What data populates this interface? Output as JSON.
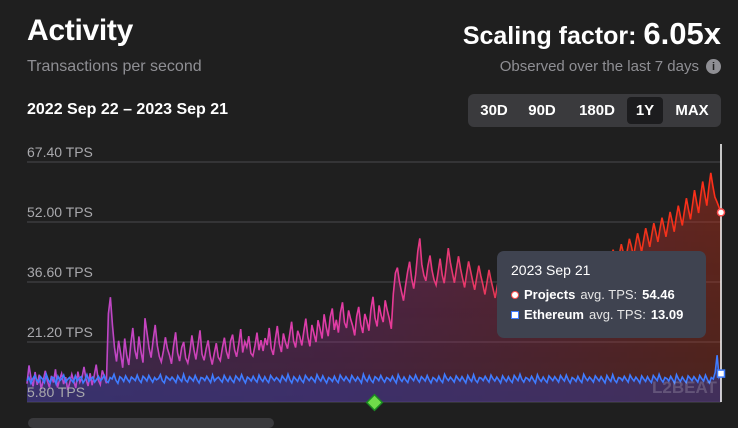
{
  "header": {
    "title": "Activity",
    "subtitle": "Transactions per second",
    "scaling_label": "Scaling factor:",
    "scaling_value": "6.05x",
    "observed": "Observed over the last 7 days",
    "date_range": "2022 Sep 22 – 2023 Sep 21"
  },
  "ranges": [
    {
      "label": "30D",
      "active": false
    },
    {
      "label": "90D",
      "active": false
    },
    {
      "label": "180D",
      "active": false
    },
    {
      "label": "1Y",
      "active": true
    },
    {
      "label": "MAX",
      "active": false
    }
  ],
  "tooltip": {
    "date": "2023 Sep 21",
    "projects_label": "Projects",
    "ethereum_label": "Ethereum",
    "metric": "avg. TPS:",
    "projects_value": "54.46",
    "ethereum_value": "13.09"
  },
  "watermark": "L2BEAT",
  "colors": {
    "projects_start": "#e63aa0",
    "projects_end": "#ff3a1e",
    "ethereum": "#3f7cff",
    "background": "#1f1f1f"
  },
  "chart_data": {
    "type": "line",
    "x_start": "2022-09-22",
    "x_end": "2023-09-21",
    "y_ticks": [
      "67.40 TPS",
      "52.00 TPS",
      "36.60 TPS",
      "21.20 TPS",
      "5.80 TPS"
    ],
    "y_tick_values": [
      67.4,
      52.0,
      36.6,
      21.2,
      5.8
    ],
    "ylim": [
      5.8,
      67.4
    ],
    "series": [
      {
        "name": "Projects",
        "values": [
          10.5,
          15.2,
          11.8,
          9.8,
          13.5,
          10.2,
          12.8,
          9.1,
          11.4,
          13.8,
          11.2,
          9.6,
          12.5,
          10.8,
          14.2,
          9.5,
          11.6,
          13.1,
          10.4,
          12.2,
          8.9,
          10.7,
          12.9,
          11.1,
          9.4,
          13.6,
          10.9,
          12.1,
          14.8,
          11.7,
          9.9,
          13.2,
          10.1,
          12.6,
          15.4,
          11.5,
          10.3,
          13.9,
          12.4,
          10.6,
          28.5,
          32.7,
          25.4,
          19.8,
          16.2,
          21.5,
          18.3,
          14.6,
          22.1,
          17.9,
          15.3,
          20.7,
          24.8,
          19.1,
          16.8,
          22.6,
          18.7,
          15.9,
          27.3,
          23.4,
          19.6,
          17.2,
          21.8,
          25.6,
          20.3,
          17.5,
          16.1,
          18.9,
          22.4,
          19.5,
          17.8,
          15.6,
          20.1,
          23.7,
          18.4,
          16.3,
          19.8,
          21.2,
          17.1,
          15.8,
          18.6,
          22.9,
          19.3,
          16.7,
          20.5,
          24.2,
          18.1,
          16.5,
          19.4,
          21.6,
          17.7,
          15.4,
          18.2,
          20.9,
          17.3,
          16.4,
          19.7,
          22.3,
          18.8,
          16.9,
          21.4,
          23.1,
          19.2,
          17.4,
          20.6,
          24.5,
          18.5,
          21.3,
          19.9,
          22.7,
          18.3,
          17.6,
          20.2,
          23.6,
          19.1,
          21.7,
          18.9,
          22.2,
          20.4,
          24.8,
          19.6,
          17.9,
          21.9,
          25.3,
          20.7,
          18.6,
          23.4,
          21.1,
          19.5,
          22.8,
          26.4,
          21.5,
          19.8,
          24.1,
          22.6,
          20.3,
          23.9,
          27.2,
          22.4,
          20.1,
          25.6,
          23.3,
          21.2,
          26.8,
          24.5,
          22.1,
          28.3,
          25.1,
          22.7,
          27.6,
          29.8,
          24.3,
          26.9,
          23.6,
          28.7,
          31.4,
          26.2,
          24.8,
          29.3,
          27.1,
          25.4,
          22.9,
          27.8,
          30.2,
          25.7,
          23.5,
          28.4,
          26.6,
          24.1,
          29.5,
          32.8,
          27.4,
          25.2,
          30.6,
          28.1,
          26.3,
          31.9,
          29.4,
          27.2,
          24.6,
          33.5,
          38.9,
          40.3,
          36.7,
          34.1,
          31.8,
          35.6,
          39.2,
          41.8,
          37.4,
          34.9,
          38.6,
          44.5,
          47.8,
          41.2,
          38.3,
          36.9,
          40.7,
          43.4,
          39.6,
          37.2,
          35.8,
          39.1,
          42.6,
          38.4,
          36.3,
          40.5,
          45.3,
          41.7,
          38.9,
          36.4,
          39.8,
          43.2,
          40.1,
          37.6,
          35.2,
          38.7,
          41.9,
          39.3,
          36.8,
          34.6,
          37.9,
          40.8,
          38.2,
          35.9,
          33.4,
          36.6,
          39.7,
          37.1,
          34.8,
          32.5,
          35.3,
          38.4,
          36.2,
          33.9,
          31.7,
          34.5,
          37.8,
          35.4,
          32.9,
          30.6,
          33.7,
          36.9,
          34.3,
          31.8,
          29.9,
          32.6,
          35.8,
          33.2,
          30.9,
          28.7,
          31.5,
          34.6,
          32.3,
          29.8,
          32.1,
          35.7,
          33.6,
          31.2,
          34.4,
          37.5,
          35.1,
          32.7,
          35.9,
          38.6,
          36.4,
          33.8,
          36.7,
          39.4,
          37.2,
          34.9,
          37.8,
          40.2,
          38.1,
          35.6,
          38.5,
          41.3,
          39.2,
          36.8,
          39.6,
          42.4,
          40.3,
          37.9,
          40.8,
          43.6,
          41.5,
          39.1,
          42.2,
          44.9,
          42.8,
          40.4,
          43.5,
          46.3,
          44.2,
          41.8,
          44.9,
          47.7,
          45.6,
          43.1,
          46.2,
          49.1,
          46.8,
          44.3,
          47.5,
          50.4,
          48.1,
          45.6,
          48.8,
          51.7,
          49.3,
          46.9,
          50.2,
          53.1,
          50.7,
          48.2,
          51.6,
          54.6,
          52.1,
          49.5,
          53.1,
          56.2,
          53.6,
          51.1,
          54.8,
          58.1,
          55.3,
          52.7,
          56.4,
          60.2,
          57.1,
          54.3,
          58.6,
          62.4,
          59.3,
          56.2,
          60.8,
          64.6,
          61.2,
          58.4,
          57.2,
          55.8,
          54.46
        ],
        "color": "#e63aa0"
      },
      {
        "name": "Ethereum",
        "values": [
          11.2,
          12.1,
          10.6,
          11.8,
          12.6,
          11.4,
          10.9,
          12.3,
          11.7,
          10.8,
          12.9,
          11.5,
          10.7,
          12.2,
          11.9,
          10.5,
          12.4,
          11.3,
          11.8,
          12.7,
          10.9,
          11.6,
          12.1,
          11.4,
          10.8,
          12.5,
          11.2,
          11.9,
          12.3,
          10.7,
          11.5,
          12.8,
          11.1,
          11.7,
          12.2,
          10.9,
          11.6,
          12.4,
          11.3,
          11.8,
          12.6,
          11.2,
          10.8,
          12.1,
          11.7,
          12.9,
          11.4,
          10.6,
          12.3,
          11.9,
          11.1,
          12.5,
          11.6,
          10.9,
          12.2,
          11.8,
          11.3,
          12.7,
          11.5,
          10.8,
          12.4,
          11.9,
          11.2,
          12.6,
          11.7,
          10.9,
          12.1,
          11.5,
          11.8,
          12.8,
          11.3,
          10.7,
          12.4,
          11.9,
          11.4,
          12.2,
          11.6,
          10.8,
          12.5,
          11.7,
          11.1,
          12.9,
          11.4,
          10.9,
          12.3,
          11.8,
          11.2,
          12.6,
          11.5,
          10.7,
          12.1,
          11.9,
          11.3,
          12.4,
          11.6,
          10.8,
          12.7,
          11.2,
          11.8,
          12.2,
          11.5,
          10.9,
          12.6,
          11.7,
          11.1,
          12.3,
          11.4,
          10.8,
          12.5,
          11.9,
          11.3,
          12.8,
          11.6,
          10.7,
          12.2,
          11.8,
          11.2,
          12.4,
          11.5,
          10.9,
          12.7,
          11.7,
          11.1,
          12.3,
          11.4,
          10.8,
          12.6,
          11.9,
          11.3,
          12.1,
          11.6,
          10.9,
          12.5,
          11.8,
          11.2,
          12.9,
          11.5,
          10.7,
          12.3,
          11.7,
          11.1,
          12.4,
          11.4,
          10.8,
          12.6,
          11.9,
          11.3,
          12.2,
          11.6,
          10.9,
          12.8,
          11.8,
          11.2,
          12.5,
          11.5,
          10.7,
          12.1,
          11.7,
          11.1,
          12.4,
          11.4,
          10.8,
          12.7,
          11.9,
          11.3,
          12.3,
          11.6,
          10.9,
          12.6,
          11.8,
          11.2,
          12.2,
          11.5,
          10.7,
          12.9,
          11.7,
          11.1,
          12.5,
          11.4,
          10.8,
          12.3,
          11.9,
          11.3,
          12.6,
          11.6,
          10.9,
          12.1,
          11.8,
          11.2,
          12.4,
          11.5,
          10.7,
          12.8,
          11.7,
          11.1,
          12.2,
          11.4,
          10.8,
          12.5,
          11.9,
          11.3,
          12.7,
          11.6,
          10.9,
          12.3,
          11.8,
          11.2,
          12.6,
          11.5,
          10.7,
          12.1,
          11.7,
          11.1,
          12.4,
          11.4,
          10.8,
          12.9,
          11.9,
          11.3,
          12.2,
          11.6,
          10.9,
          12.5,
          11.8,
          11.2,
          12.3,
          11.5,
          10.7,
          12.6,
          11.7,
          11.1,
          12.8,
          11.4,
          10.8,
          12.1,
          11.9,
          11.3,
          12.4,
          11.6,
          10.9,
          12.7,
          11.8,
          11.2,
          12.2,
          11.5,
          10.7,
          12.5,
          11.7,
          11.1,
          12.3,
          11.4,
          10.8,
          12.6,
          11.9,
          11.3,
          12.9,
          11.6,
          10.9,
          12.1,
          11.8,
          11.2,
          12.4,
          11.5,
          10.7,
          12.8,
          11.7,
          11.1,
          12.2,
          11.4,
          10.8,
          12.5,
          11.9,
          11.3,
          12.3,
          11.6,
          10.9,
          12.6,
          11.8,
          11.2,
          12.7,
          11.5,
          10.7,
          12.1,
          11.7,
          11.1,
          12.4,
          11.4,
          10.8,
          12.9,
          11.9,
          11.3,
          12.2,
          11.6,
          10.9,
          12.5,
          11.8,
          11.2,
          12.3,
          11.5,
          10.7,
          12.6,
          11.7,
          11.1,
          12.8,
          11.4,
          10.8,
          12.1,
          11.9,
          11.3,
          12.4,
          11.6,
          10.9,
          12.7,
          11.8,
          11.2,
          12.2,
          11.5,
          10.7,
          12.5,
          11.7,
          11.1,
          12.3,
          11.4,
          10.8,
          12.6,
          11.9,
          11.3,
          12.9,
          11.6,
          10.9,
          12.1,
          11.8,
          11.2,
          12.4,
          11.5,
          10.7,
          12.8,
          11.7,
          11.1,
          12.2,
          11.4,
          10.8,
          12.5,
          11.9,
          11.3,
          12.3,
          11.6,
          10.9,
          12.6,
          11.8,
          11.2,
          12.7,
          11.5,
          10.7,
          12.1,
          11.7,
          13.4,
          17.8,
          12.2,
          13.09
        ],
        "color": "#3f7cff"
      }
    ],
    "grid": true,
    "legend": "tooltip"
  }
}
